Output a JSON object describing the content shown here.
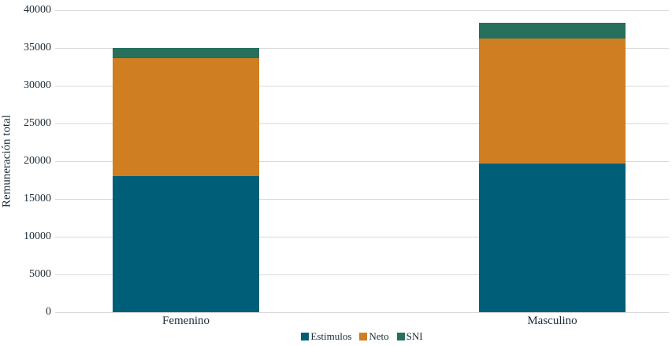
{
  "chart_data": {
    "type": "bar",
    "stacked": true,
    "title": "",
    "categories": [
      "Femenino",
      "Masculino"
    ],
    "series": [
      {
        "name": "Estimulos",
        "color": "#015E79",
        "values": [
          18000,
          19650
        ]
      },
      {
        "name": "Neto",
        "color": "#D07E22",
        "values": [
          15600,
          16650
        ]
      },
      {
        "name": "SNI",
        "color": "#26705C",
        "values": [
          1400,
          2050
        ]
      }
    ],
    "totals": [
      35000,
      38350
    ],
    "xlabel": "",
    "ylabel": "Remuneración total",
    "ylim": [
      0,
      40000
    ],
    "ytick_step": 5000,
    "ytick_labels": [
      "0",
      "5000",
      "10000",
      "15000",
      "20000",
      "25000",
      "30000",
      "35000",
      "40000"
    ],
    "grid": "horizontal",
    "legend_position": "bottom"
  },
  "colors": {
    "background": "#ffffff",
    "gridline": "#d9d9d9",
    "text": "#1c2b36"
  }
}
